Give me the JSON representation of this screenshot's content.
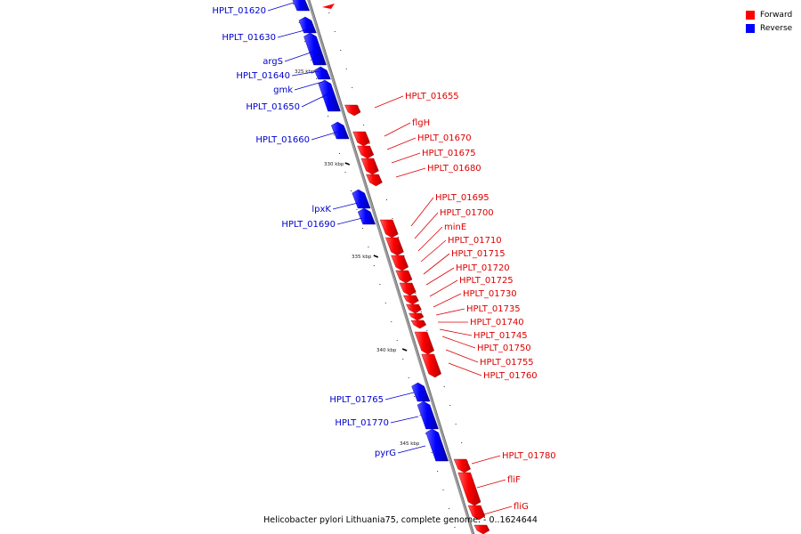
{
  "legend": {
    "forward": {
      "label": "Forward",
      "color": "#ff0000"
    },
    "reverse": {
      "label": "Reverse",
      "color": "#0000ff"
    }
  },
  "caption": "Helicobacter pylori Lithuania75, complete genome. - 0..1624644",
  "scale_labels": [
    "325 kbp",
    "330 kbp",
    "335 kbp",
    "340 kbp",
    "345 kbp"
  ],
  "reverse_genes": [
    "HPLT_01620",
    "HPLT_01630",
    "argS",
    "HPLT_01640",
    "gmk",
    "HPLT_01650",
    "HPLT_01660",
    "lpxK",
    "HPLT_01690",
    "HPLT_01765",
    "HPLT_01770",
    "pyrG"
  ],
  "forward_genes": [
    "HPLT_01655",
    "flgH",
    "HPLT_01670",
    "HPLT_01675",
    "HPLT_01680",
    "HPLT_01695",
    "HPLT_01700",
    "minE",
    "HPLT_01710",
    "HPLT_01715",
    "HPLT_01720",
    "HPLT_01725",
    "HPLT_01730",
    "HPLT_01735",
    "HPLT_01740",
    "HPLT_01745",
    "HPLT_01750",
    "HPLT_01755",
    "HPLT_01760",
    "HPLT_01780",
    "fliF",
    "fliG"
  ]
}
